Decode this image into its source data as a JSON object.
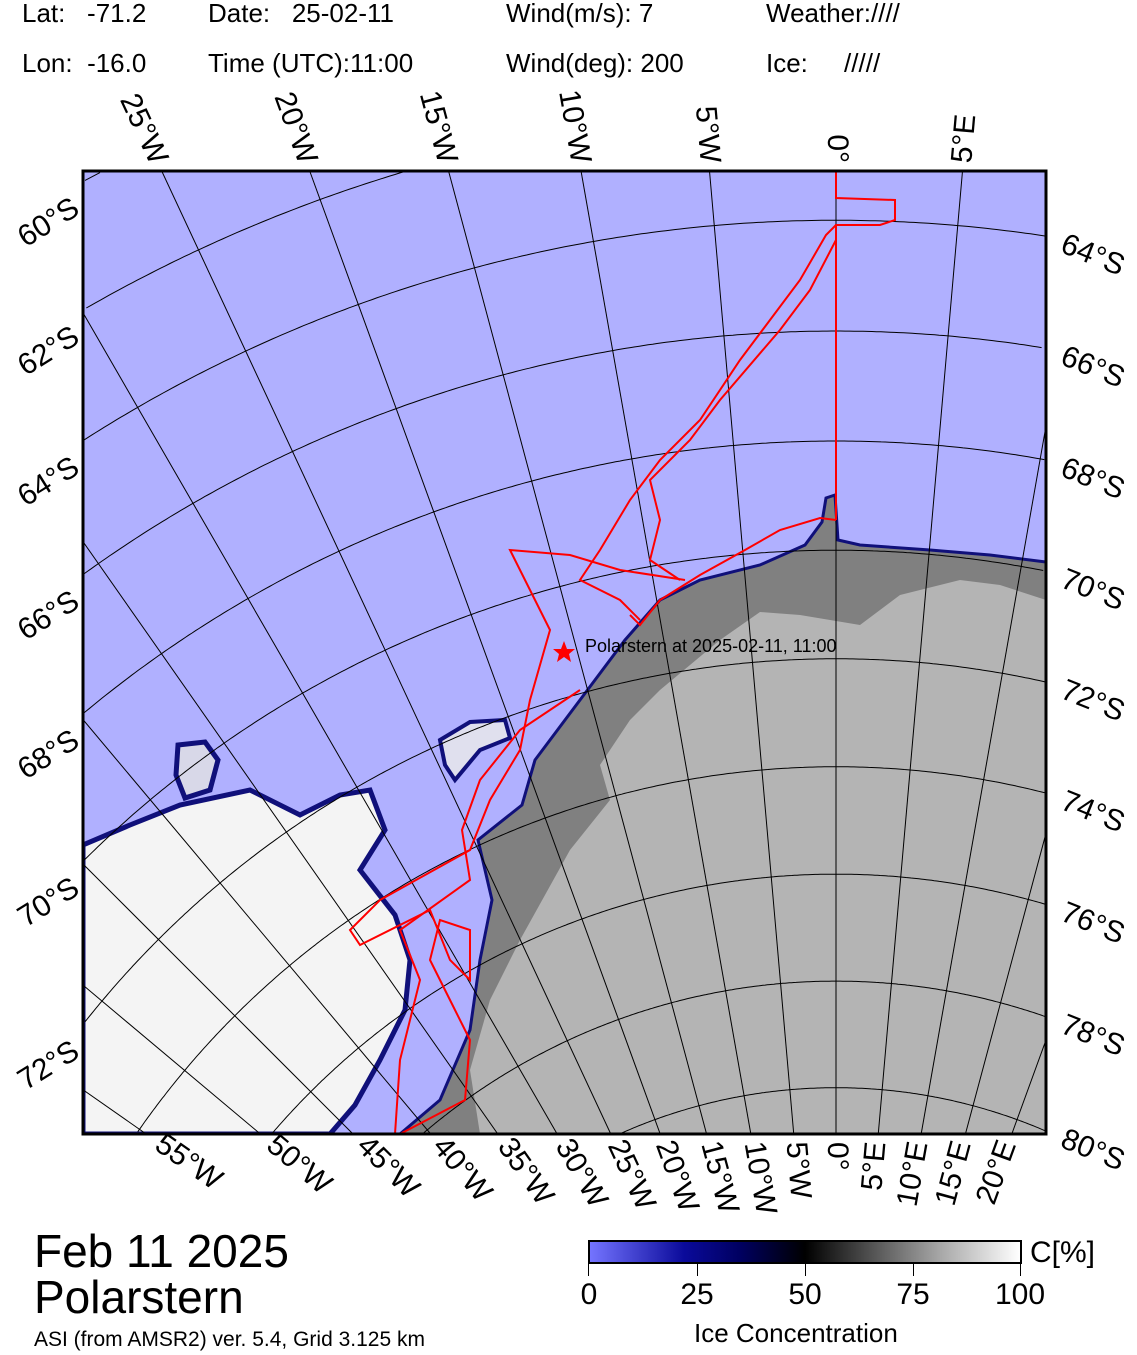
{
  "header": {
    "lat_label": "Lat:",
    "lat_value": "-71.2",
    "lon_label": "Lon:",
    "lon_value": "-16.0",
    "date_label": "Date:",
    "date_value": "25-02-11",
    "time_label": "Time (UTC):",
    "time_value": "11:00",
    "wind_speed_label": "Wind(m/s):",
    "wind_speed_value": "7",
    "wind_dir_label": "Wind(deg):",
    "wind_dir_value": "200",
    "weather_label": "Weather:",
    "weather_value": "////",
    "ice_label": "Ice:",
    "ice_value": "/////"
  },
  "map": {
    "projection": "polar stereographic (south)",
    "colors": {
      "ocean": "#b0b0ff",
      "ice_shelf": "#808080",
      "land": "#b4b4b4",
      "sea_ice": "#f4f4f4",
      "ice_edge": "#10107a",
      "track": "#ff0000"
    },
    "meridians_deg": [
      -55,
      -50,
      -45,
      -40,
      -35,
      -30,
      -25,
      -20,
      -15,
      -10,
      -5,
      0,
      5,
      10,
      15,
      20
    ],
    "top_meridian_labels": [
      "25°W",
      "20°W",
      "15°W",
      "10°W",
      "5°W",
      "0°",
      "5°E"
    ],
    "bottom_meridian_labels": [
      "55°W",
      "50°W",
      "45°W",
      "40°W",
      "35°W",
      "30°W",
      "25°W",
      "20°W",
      "15°W",
      "10°W",
      "5°W",
      "0°",
      "5°E",
      "10°E",
      "15°E",
      "20°E"
    ],
    "parallels_deg": [
      60,
      62,
      64,
      66,
      68,
      70,
      72,
      74,
      76,
      78,
      80
    ],
    "left_parallel_labels": [
      "60°S",
      "62°S",
      "64°S",
      "66°S",
      "68°S",
      "70°S",
      "72°S"
    ],
    "right_parallel_labels": [
      "64°S",
      "66°S",
      "68°S",
      "70°S",
      "72°S",
      "74°S",
      "76°S",
      "78°S",
      "80°S"
    ],
    "ship_marker": {
      "icon": "star-icon",
      "label": "Polarstern at 2025-02-11, 11:00"
    }
  },
  "title": {
    "date": "Feb 11 2025",
    "ship": "Polarstern",
    "source": "ASI (from AMSR2) ver. 5.4,  Grid 3.125 km"
  },
  "colorbar": {
    "ticks": [
      "0",
      "25",
      "50",
      "75",
      "100"
    ],
    "unit": "C[%]",
    "title": "Ice Concentration",
    "range": [
      0,
      100
    ]
  }
}
